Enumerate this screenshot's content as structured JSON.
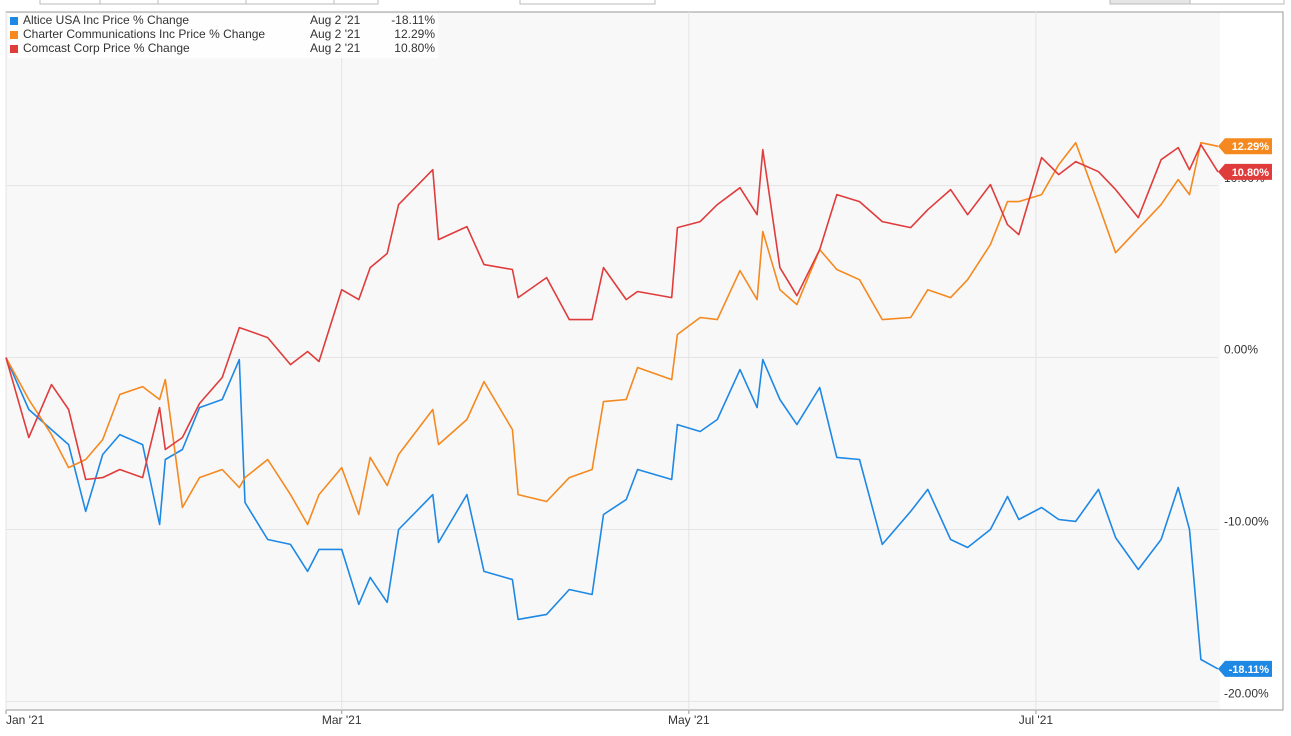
{
  "chart_data": {
    "type": "line",
    "legend_date": "Aug 2 '21",
    "x": [
      0,
      4,
      8,
      11,
      14,
      17,
      20,
      24,
      27,
      28,
      31,
      34,
      38,
      41,
      42,
      46,
      50,
      53,
      55,
      59,
      62,
      64,
      67,
      69,
      75,
      76,
      81,
      84,
      89,
      90,
      95,
      99,
      103,
      105,
      109,
      111,
      117,
      118,
      122,
      125,
      129,
      132,
      133,
      136,
      139,
      143,
      146,
      150,
      154,
      159,
      162,
      166,
      169,
      173,
      176,
      178,
      182,
      185,
      188,
      192,
      195,
      199,
      203,
      206,
      208,
      210,
      213
    ],
    "xlim": [
      0,
      213
    ],
    "xticks": [
      {
        "value": 0,
        "label": "Jan '21"
      },
      {
        "value": 59,
        "label": "Mar '21"
      },
      {
        "value": 120,
        "label": "May '21"
      },
      {
        "value": 181,
        "label": "Jul '21"
      }
    ],
    "ylim": [
      -20.5,
      20.1
    ],
    "yticks": [
      {
        "value": -20,
        "label": "-20.00%"
      },
      {
        "value": -10,
        "label": "-10.00%"
      },
      {
        "value": 0,
        "label": "0.00%"
      },
      {
        "value": 10,
        "label": "10.00%"
      }
    ],
    "grid": true,
    "series": [
      {
        "name": "Altice USA Inc Price % Change",
        "color": "#1e88e5",
        "last_value_label": "-18.11%",
        "values": [
          0,
          -3.02,
          -4.19,
          -5.06,
          -8.95,
          -5.64,
          -4.48,
          -5.06,
          -9.71,
          -5.93,
          -5.35,
          -2.91,
          -2.44,
          -0.12,
          -8.43,
          -10.58,
          -10.87,
          -12.44,
          -11.16,
          -11.16,
          -14.36,
          -12.79,
          -14.24,
          -10.0,
          -7.97,
          -10.76,
          -7.97,
          -12.44,
          -12.91,
          -15.23,
          -14.94,
          -13.49,
          -13.78,
          -9.13,
          -8.26,
          -6.51,
          -7.09,
          -3.9,
          -4.3,
          -3.6,
          -0.7,
          -2.91,
          -0.12,
          -2.44,
          -3.9,
          -1.74,
          -5.81,
          -5.93,
          -10.87,
          -8.95,
          -7.67,
          -10.58,
          -11.05,
          -10.0,
          -8.08,
          -9.42,
          -8.72,
          -9.42,
          -9.53,
          -7.67,
          -10.47,
          -12.33,
          -10.58,
          -7.56,
          -10.0,
          -17.56,
          -18.11
        ]
      },
      {
        "name": "Charter Communications Inc Price % Change",
        "color": "#f5891f",
        "last_value_label": "12.29%",
        "values": [
          0,
          -2.44,
          -4.48,
          -6.4,
          -5.93,
          -4.77,
          -2.15,
          -1.69,
          -2.44,
          -1.28,
          -8.72,
          -6.98,
          -6.51,
          -7.56,
          -6.98,
          -5.93,
          -7.97,
          -9.71,
          -7.97,
          -6.4,
          -9.13,
          -5.81,
          -7.44,
          -5.64,
          -3.02,
          -5.06,
          -3.6,
          -1.4,
          -4.19,
          -7.97,
          -8.37,
          -6.98,
          -6.51,
          -2.56,
          -2.44,
          -0.58,
          -1.28,
          1.34,
          2.33,
          2.21,
          5.06,
          3.37,
          7.33,
          3.95,
          3.08,
          6.28,
          5.12,
          4.53,
          2.21,
          2.33,
          3.95,
          3.49,
          4.53,
          6.57,
          9.07,
          9.07,
          9.48,
          11.22,
          12.5,
          8.9,
          6.1,
          7.5,
          8.9,
          10.35,
          9.48,
          12.5,
          12.29
        ]
      },
      {
        "name": "Comcast Corp Price % Change",
        "color": "#e03c3c",
        "last_value_label": "10.80%",
        "values": [
          0,
          -4.65,
          -1.57,
          -3.02,
          -7.09,
          -6.98,
          -6.51,
          -6.98,
          -2.91,
          -5.35,
          -4.65,
          -2.67,
          -1.16,
          1.74,
          1.63,
          1.16,
          -0.41,
          0.35,
          -0.23,
          3.95,
          3.37,
          5.23,
          6.05,
          8.9,
          10.93,
          6.86,
          7.62,
          5.41,
          5.12,
          3.49,
          4.65,
          2.21,
          2.21,
          5.23,
          3.37,
          3.84,
          3.49,
          7.56,
          7.91,
          8.9,
          9.88,
          8.31,
          12.09,
          5.23,
          3.6,
          6.28,
          9.48,
          9.07,
          7.91,
          7.56,
          8.6,
          9.77,
          8.31,
          10.06,
          7.73,
          7.15,
          11.63,
          10.64,
          11.4,
          10.81,
          9.77,
          8.14,
          11.51,
          12.21,
          10.93,
          12.38,
          10.8
        ]
      }
    ]
  }
}
